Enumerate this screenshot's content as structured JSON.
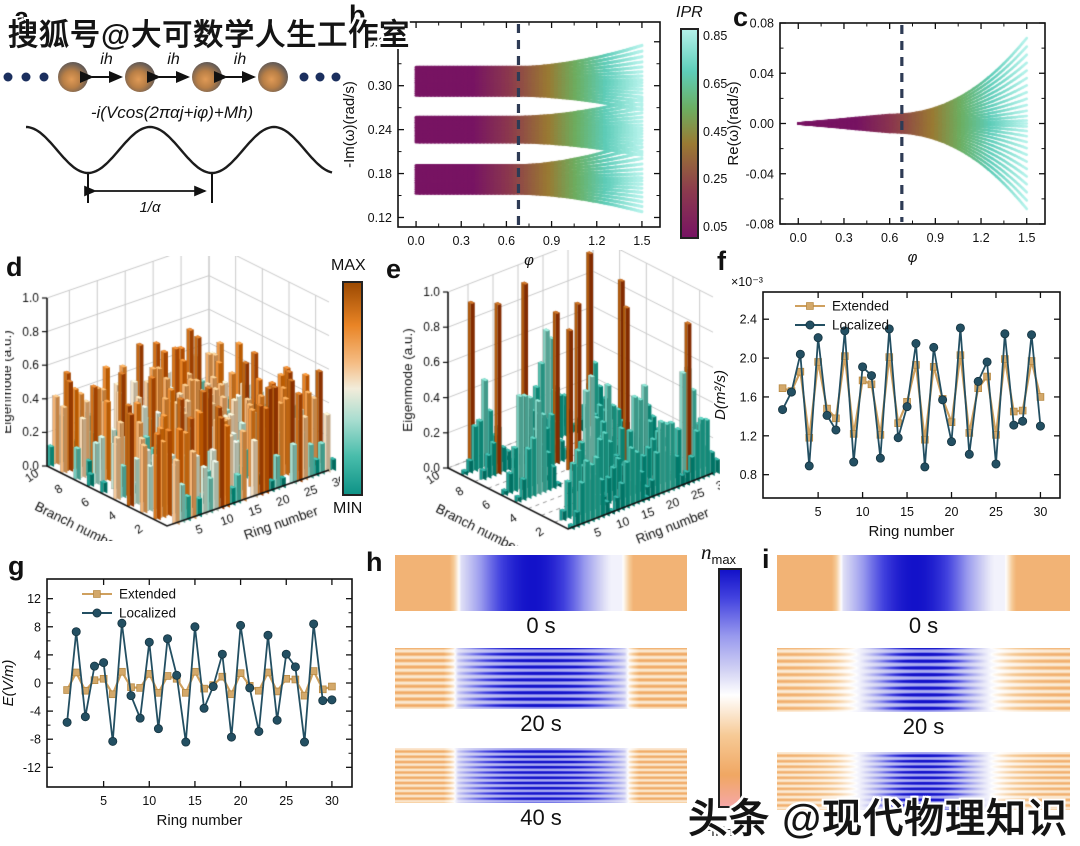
{
  "watermarks": {
    "top_left": "搜狐号@大可数学人生工作室",
    "bottom_right": "头条 @现代物理知识"
  },
  "panel_labels": {
    "a": "a",
    "b": "b",
    "c": "c",
    "d": "d",
    "e": "e",
    "f": "f",
    "g": "g",
    "h": "h",
    "i": "i"
  },
  "panel_a": {
    "coupling_label": "ih",
    "equation": "-i(Vcos(2παj+iφ)+Mh)",
    "period_label": "1/α"
  },
  "colorbars": {
    "ipr": {
      "title": "IPR",
      "ticks": [
        0.85,
        0.65,
        0.45,
        0.25,
        0.05
      ]
    },
    "mode": {
      "max": "MAX",
      "min": "MIN"
    },
    "n": {
      "symbol": "n",
      "max": "max",
      "min": "min"
    }
  },
  "colors": {
    "extended": "#d3a86a",
    "extended_line": "#cfa05e",
    "localized": "#234f62",
    "dashed_line": "#2e3b55",
    "ipr_map": {
      "positions": [
        0,
        0.22,
        0.45,
        0.62,
        0.8,
        1
      ],
      "colors": [
        "#781463",
        "#8c3a4e",
        "#9a7a33",
        "#6cae61",
        "#5ecdb9",
        "#b2f1e9"
      ]
    },
    "bar_map": {
      "positions": [
        0,
        0.18,
        0.35,
        0.5,
        0.62,
        0.8,
        1
      ],
      "colors": [
        "#0f9387",
        "#49bdab",
        "#a8ddd0",
        "#f2ecda",
        "#f5bd85",
        "#e98425",
        "#9c4a02"
      ]
    },
    "n_map": {
      "positions": [
        0,
        0.13,
        0.3,
        0.47,
        0.57,
        0.72,
        0.88,
        1
      ],
      "colors": [
        "#f5a7a5",
        "#f0a763",
        "#f6ca96",
        "#ffffff",
        "#d4d4f4",
        "#9899ee",
        "#4343df",
        "#1312c9"
      ]
    }
  },
  "chart_data": [
    {
      "id": "b",
      "type": "line-spectrum",
      "xlabel": "φ",
      "ylabel": "-Im(ω)(rad/s)",
      "xticks": [
        0.0,
        0.3,
        0.6,
        0.9,
        1.2,
        1.5
      ],
      "xticks_minor": [
        0.15,
        0.45,
        0.75,
        1.05,
        1.35
      ],
      "yticks": [
        0.12,
        0.18,
        0.24,
        0.3,
        0.36
      ],
      "yticks_minor": [
        0.15,
        0.21,
        0.27,
        0.33
      ],
      "x_decimals": 1,
      "y_decimals": 2,
      "xlim": [
        -0.12,
        1.62
      ],
      "ylim": [
        0.107,
        0.387
      ],
      "dashed_x": 0.68,
      "fan_onset": 0.7,
      "lines_per_band": 16,
      "bands": [
        {
          "center": 0.306,
          "halfwidth": 0.019,
          "spread_top": 0.03,
          "spread_bottom": 0.02
        },
        {
          "center": 0.24,
          "halfwidth": 0.017,
          "spread_top": 0.025,
          "spread_bottom": 0.018
        },
        {
          "center": 0.172,
          "halfwidth": 0.019,
          "spread_top": 0.034,
          "spread_bottom": 0.025
        }
      ],
      "colorbar": "ipr"
    },
    {
      "id": "c",
      "type": "line-fan",
      "xlabel": "φ",
      "ylabel": "Re(ω)(rad/s)",
      "xticks": [
        0.0,
        0.3,
        0.6,
        0.9,
        1.2,
        1.5
      ],
      "xticks_minor": [
        0.15,
        0.45,
        0.75,
        1.05,
        1.35
      ],
      "yticks": [
        0.08,
        0.04,
        0.0,
        -0.04,
        -0.08
      ],
      "yticks_minor": [
        0.06,
        0.02,
        -0.02,
        -0.06
      ],
      "x_decimals": 1,
      "y_decimals": 2,
      "xlim": [
        -0.12,
        1.62
      ],
      "ylim": [
        -0.08,
        0.08
      ],
      "dashed_x": 0.68,
      "fan_onset": 0.6,
      "n_lines": 27,
      "max_amp": 0.068
    },
    {
      "id": "d",
      "type": "bar3d",
      "pattern": "extended",
      "zlabel": "Eigenmode (a.u.)",
      "xlabel": "Branch number",
      "ylabel": "Ring number",
      "zticks": [
        0.0,
        0.2,
        0.4,
        0.6,
        0.8,
        1.0
      ],
      "branch_ticks": [
        10,
        8,
        6,
        4,
        2
      ],
      "ring_ticks": [
        5,
        10,
        15,
        20,
        25,
        30
      ],
      "branches": 10,
      "rings": 30,
      "seed": 7,
      "height_range": [
        0.06,
        0.56
      ],
      "skip_fraction": 0.1,
      "colorbar": "mode"
    },
    {
      "id": "e",
      "type": "bar3d",
      "pattern": "localized",
      "zlabel": "Eigenmode (a.u.)",
      "xlabel": "Branch number",
      "ylabel": "Ring number",
      "zticks": [
        0.0,
        0.2,
        0.4,
        0.6,
        0.8,
        1.0
      ],
      "branch_ticks": [
        10,
        8,
        6,
        4,
        2
      ],
      "ring_ticks": [
        5,
        10,
        15,
        20,
        25,
        30
      ],
      "branches": 10,
      "rings": 30,
      "seed": 11,
      "spikes": [
        [
          10,
          5,
          0.9
        ],
        [
          8,
          5,
          0.97
        ],
        [
          9,
          13,
          0.96
        ],
        [
          7,
          14,
          0.86
        ],
        [
          5,
          13,
          1.0
        ],
        [
          6,
          14,
          0.8
        ],
        [
          4,
          20,
          0.94
        ],
        [
          9,
          26,
          0.99
        ],
        [
          7,
          27,
          0.9
        ],
        [
          2,
          27,
          0.85
        ]
      ],
      "cluster_rings": [
        5,
        13,
        20,
        27
      ],
      "cluster_sigma": 1.7,
      "cluster_peak": 0.42,
      "dashed_rows": true
    },
    {
      "id": "f",
      "type": "line",
      "xlabel": "Ring number",
      "ylabel": "D(m²/s)",
      "scale_label": "×10⁻³",
      "xticks": [
        5,
        10,
        15,
        20,
        25,
        30
      ],
      "yticks": [
        0.8,
        1.2,
        1.6,
        2.0,
        2.4
      ],
      "x_decimals": 0,
      "y_decimals": 1,
      "xlim": [
        -1.2,
        32.2
      ],
      "ylim": [
        0.56,
        2.68
      ],
      "x_start": 1,
      "series": [
        {
          "name": "Extended",
          "marker": "square",
          "values": [
            1.69,
            1.66,
            1.86,
            1.18,
            1.96,
            1.48,
            1.38,
            2.02,
            1.22,
            1.77,
            1.73,
            1.21,
            2.01,
            1.33,
            1.55,
            1.93,
            1.16,
            1.91,
            1.58,
            1.34,
            2.03,
            1.23,
            1.69,
            1.81,
            1.21,
            1.99,
            1.45,
            1.46,
            1.97,
            1.6
          ]
        },
        {
          "name": "Localized",
          "marker": "circle",
          "values": [
            1.47,
            1.65,
            2.04,
            0.89,
            2.21,
            1.41,
            1.26,
            2.28,
            0.93,
            1.91,
            1.82,
            0.97,
            2.3,
            1.18,
            1.5,
            2.15,
            0.88,
            2.11,
            1.57,
            1.14,
            2.31,
            1.01,
            1.76,
            1.96,
            0.91,
            2.25,
            1.31,
            1.35,
            2.24,
            1.3
          ]
        }
      ]
    },
    {
      "id": "g",
      "type": "line",
      "xlabel": "Ring number",
      "ylabel": "E(V/m)",
      "xticks": [
        5,
        10,
        15,
        20,
        25,
        30
      ],
      "yticks": [
        -12,
        -8,
        -4,
        0,
        4,
        8,
        12
      ],
      "yticks_minor": [
        -10,
        -6,
        -2,
        2,
        6,
        10
      ],
      "x_decimals": 0,
      "y_decimals": 0,
      "xlim": [
        -1.2,
        32.2
      ],
      "ylim": [
        -14.8,
        14.8
      ],
      "x_start": 1,
      "series": [
        {
          "name": "Extended",
          "marker": "square",
          "values": [
            -1.0,
            1.5,
            -1.1,
            0.4,
            0.6,
            -1.6,
            1.6,
            -0.6,
            -0.7,
            1.3,
            -1.4,
            1.0,
            0.6,
            -1.4,
            1.6,
            -0.8,
            -0.3,
            0.9,
            -1.6,
            1.4,
            -0.4,
            -1.1,
            1.5,
            -1.2,
            0.6,
            0.5,
            -1.8,
            1.7,
            -0.9,
            -0.5
          ]
        },
        {
          "name": "Localized",
          "marker": "circle",
          "values": [
            -5.6,
            7.3,
            -4.8,
            2.4,
            2.9,
            -8.3,
            8.5,
            -1.8,
            -5.0,
            5.8,
            -6.5,
            6.3,
            1.1,
            -8.4,
            8.0,
            -3.6,
            -0.5,
            4.1,
            -7.7,
            8.2,
            -0.7,
            -6.9,
            6.8,
            -5.3,
            4.1,
            2.3,
            -8.4,
            8.4,
            -2.5,
            -2.4
          ]
        }
      ]
    },
    {
      "id": "h",
      "type": "heatmap-strips",
      "strips": [
        {
          "label": "0 s",
          "style": "smooth"
        },
        {
          "label": "20 s",
          "style": "striped"
        },
        {
          "label": "40 s",
          "style": "striped"
        }
      ],
      "colorbar": "n"
    },
    {
      "id": "i",
      "type": "heatmap-strips",
      "strips": [
        {
          "label": "0 s",
          "style": "smooth"
        },
        {
          "label": "20 s",
          "style": "striped-full"
        },
        {
          "label": "40 s",
          "style": "striped-full"
        }
      ]
    }
  ]
}
